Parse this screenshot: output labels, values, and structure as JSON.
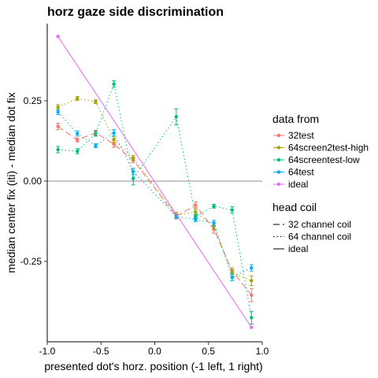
{
  "chart_data": {
    "type": "line",
    "title": "horz gaze side discrimination",
    "xlabel": "presented dot's horz. position (-1 left, 1 right)",
    "ylabel": "median center fix (iti) - median dot fix",
    "xlim": [
      -1.0,
      1.0
    ],
    "ylim": [
      -0.5,
      0.49
    ],
    "x_ticks": [
      -1.0,
      -0.5,
      0.0,
      0.5,
      1.0
    ],
    "x_tick_labels": [
      "-1.0",
      "-0.5",
      "0.0",
      "0.5",
      "1.0"
    ],
    "y_ticks": [
      -0.25,
      0.0,
      0.25
    ],
    "y_tick_labels": [
      "-0.25",
      "0.00",
      "0.25"
    ],
    "reference_line_y": 0.0,
    "legend": {
      "color_title": "data from",
      "linetype_title": "head coil",
      "placement": "right"
    },
    "series": [
      {
        "name": "32test",
        "color": "#F8766D",
        "linetype": "32 channel coil",
        "x": [
          -0.9,
          -0.72,
          -0.55,
          -0.38,
          -0.2,
          0.2,
          0.38,
          0.55,
          0.72,
          0.9
        ],
        "y": [
          0.17,
          0.128,
          0.15,
          0.115,
          0.065,
          -0.11,
          -0.075,
          -0.15,
          -0.28,
          -0.355
        ],
        "err": [
          0.01,
          0.006,
          0.008,
          0.01,
          0.008,
          0.008,
          0.01,
          0.012,
          0.01,
          0.02
        ]
      },
      {
        "name": "64screen2test-high",
        "color": "#A3A500",
        "linetype": "64 channel coil",
        "x": [
          -0.9,
          -0.72,
          -0.55,
          -0.38,
          -0.2,
          0.2,
          0.38,
          0.55,
          0.72,
          0.9
        ],
        "y": [
          0.23,
          0.257,
          0.247,
          0.13,
          0.072,
          -0.105,
          -0.097,
          -0.14,
          -0.285,
          -0.31
        ],
        "err": [
          0.008,
          0.006,
          0.006,
          0.01,
          0.008,
          0.008,
          0.008,
          0.01,
          0.01,
          0.015
        ]
      },
      {
        "name": "64screentest-low",
        "color": "#00BF7D",
        "linetype": "64 channel coil",
        "x": [
          -0.9,
          -0.72,
          -0.55,
          -0.38,
          -0.2,
          0.2,
          0.38,
          0.55,
          0.72,
          0.9
        ],
        "y": [
          0.098,
          0.093,
          0.148,
          0.302,
          0.008,
          0.2,
          -0.11,
          -0.078,
          -0.09,
          -0.425
        ],
        "err": [
          0.01,
          0.008,
          0.008,
          0.01,
          0.02,
          0.025,
          0.006,
          0.006,
          0.01,
          0.02
        ]
      },
      {
        "name": "64test",
        "color": "#00B0F6",
        "linetype": "64 channel coil",
        "x": [
          -0.9,
          -0.72,
          -0.55,
          -0.38,
          -0.2,
          0.2,
          0.38,
          0.55,
          0.72,
          0.9
        ],
        "y": [
          0.215,
          0.148,
          0.11,
          0.15,
          0.03,
          -0.11,
          -0.12,
          -0.13,
          -0.3,
          -0.27
        ],
        "err": [
          0.008,
          0.008,
          0.006,
          0.01,
          0.01,
          0.006,
          0.006,
          0.008,
          0.01,
          0.01
        ]
      },
      {
        "name": "ideal",
        "color": "#E76BF3",
        "linetype": "ideal",
        "x": [
          -0.9,
          0.9
        ],
        "y": [
          0.45,
          -0.455
        ],
        "err": []
      }
    ]
  },
  "legend_linetypes": [
    {
      "label": "32 channel coil",
      "dash": "long-dash"
    },
    {
      "label": "64 channel coil",
      "dash": "dotted"
    },
    {
      "label": "ideal",
      "dash": "solid"
    }
  ]
}
